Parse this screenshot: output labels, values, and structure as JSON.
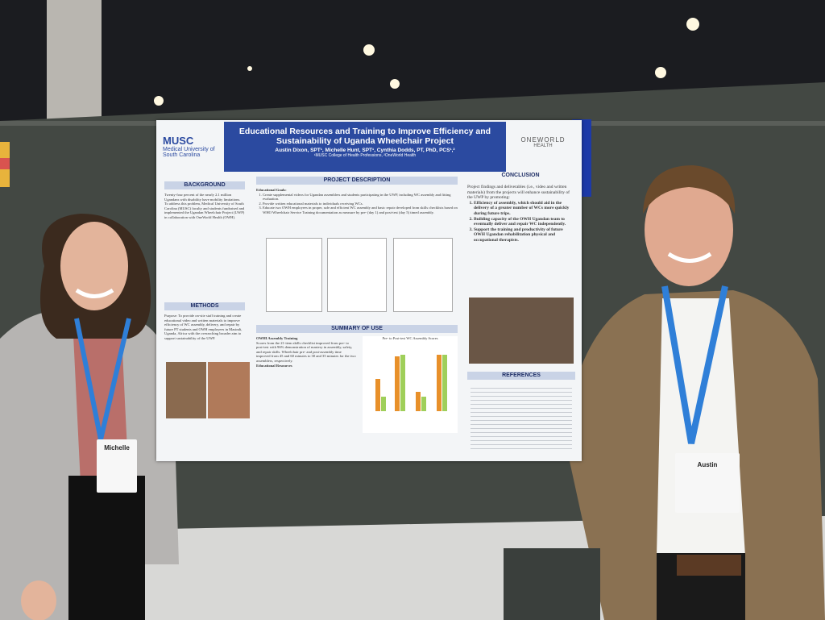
{
  "poster": {
    "logo_left": {
      "abbr": "MUSC",
      "name": "Medical University of South Carolina"
    },
    "title": "Educational Resources and Training to Improve Efficiency and Sustainability of Uganda Wheelchair Project",
    "authors": "Austin Dixon, SPT¹, Michelle Hunt, SPT¹, Cynthia Dodds, PT, PhD, PCS¹,²",
    "affiliations": "¹MUSC College of Health Professions, ²OneWorld Health",
    "logo_right": {
      "name": "ONEWORLD",
      "sub": "HEALTH"
    },
    "sections": {
      "background": "BACKGROUND",
      "methods": "METHODS",
      "project_description": "PROJECT DESCRIPTION",
      "summary_of_use": "SUMMARY OF USE",
      "conclusion": "CONCLUSION",
      "references": "REFERENCES"
    },
    "background_text": "Twenty-four percent of the nearly 2.1 million Ugandans with disability have mobility limitations. To address this problem, Medical University of South Carolina (MUSC) faculty and students fundraised and implemented the Ugandan Wheelchair Project (UWP) in collaboration with OneWorld Health (OWH).",
    "methods_text": "Purpose: To provide on-site staff training and create educational video and written materials to improve efficiency of WC assembly, delivery, and repair by future PT students and OWH employees in Masindi, Uganda, Africa with the overarching broader aim to support sustainability of the UWP.",
    "goals_heading": "Educational Goals:",
    "goals": [
      "Create supplemental videos for Ugandan assemblers and students participating in the UWP, including WC assembly and fitting evaluation.",
      "Provide written educational materials to individuals receiving WCs.",
      "Educate two OWH employees in proper, safe and efficient WC assembly and basic repair developed from skills checklists based on WHO Wheelchair Service Training documentation as measure by pre- (day 1) and post-test (day 5) timed assembly."
    ],
    "summary_heading": "OWHI Assembly Training",
    "summary_text": "Scores from the 21-item skills checklist improved from pre- to post-test with 96% demonstration of mastery in assembly, safety, and repair skills. Wheelchair pre- and post-assembly time improved from 45 and 60 minutes to 30 and 35 minutes for the two assemblers, respectively.",
    "resources_heading": "Educational Resources",
    "conclusion_text": "Project findings and deliverables (i.e., video and written materials) from the projects will enhance sustainability of the UWP by promoting:",
    "conclusion_points": [
      "Efficiency of assembly, which should aid in the delivery of a greater number of WCs more quickly during future trips.",
      "Building capacity of the OWH Ugandan team to eventually deliver and repair WC independently.",
      "Support the training and productivity of future OWH Ugandan rehabilitation physical and occupational therapists."
    ],
    "chart_caption": "Pre- to Post-test WC Assembly Scores"
  },
  "badges": [
    "Michelle",
    "Austin"
  ]
}
